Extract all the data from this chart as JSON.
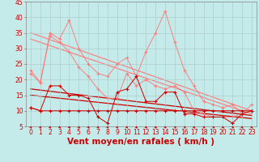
{
  "xlabel": "Vent moyen/en rafales ( km/h )",
  "xlim": [
    -0.5,
    23.5
  ],
  "ylim": [
    5,
    45
  ],
  "yticks": [
    5,
    10,
    15,
    20,
    25,
    30,
    35,
    40,
    45
  ],
  "xticks": [
    0,
    1,
    2,
    3,
    4,
    5,
    6,
    7,
    8,
    9,
    10,
    11,
    12,
    13,
    14,
    15,
    16,
    17,
    18,
    19,
    20,
    21,
    22,
    23
  ],
  "bg_color": "#c5eaea",
  "grid_color": "#b0cccc",
  "line_pink_color": "#ff7777",
  "line_red_color": "#cc0000",
  "pink1_y": [
    22,
    19,
    35,
    33,
    39,
    30,
    25,
    22,
    21,
    25,
    27,
    21,
    29,
    35,
    42,
    32,
    23,
    18,
    13,
    12,
    11,
    12,
    9,
    12
  ],
  "pink2_y": [
    23,
    19,
    34,
    32,
    29,
    24,
    21,
    17,
    14,
    14,
    22,
    18,
    20,
    18,
    17,
    18,
    16,
    10,
    9,
    8,
    8,
    8,
    9,
    10
  ],
  "red1_y": [
    11,
    10,
    18,
    18,
    15,
    15,
    14,
    8,
    6,
    16,
    17,
    21,
    13,
    13,
    16,
    16,
    9,
    9,
    8,
    8,
    8,
    6,
    9,
    10
  ],
  "red2_y": [
    11,
    10,
    10,
    10,
    10,
    10,
    10,
    10,
    10,
    10,
    10,
    10,
    10,
    10,
    10,
    10,
    10,
    10,
    10,
    10,
    10,
    10,
    10,
    10
  ],
  "trend_pink1": [
    35.0,
    10.0
  ],
  "trend_pink2": [
    33.0,
    9.0
  ],
  "trend_red1": [
    17.0,
    8.5
  ],
  "trend_red2": [
    15.0,
    7.5
  ],
  "font_color": "#cc0000",
  "tick_fontsize": 5.5,
  "xlabel_fontsize": 7.5,
  "arrow_angles": [
    45,
    45,
    45,
    45,
    45,
    45,
    45,
    45,
    45,
    45,
    45,
    45,
    45,
    45,
    45,
    90,
    90,
    45,
    90,
    90,
    45,
    90,
    45,
    45
  ]
}
